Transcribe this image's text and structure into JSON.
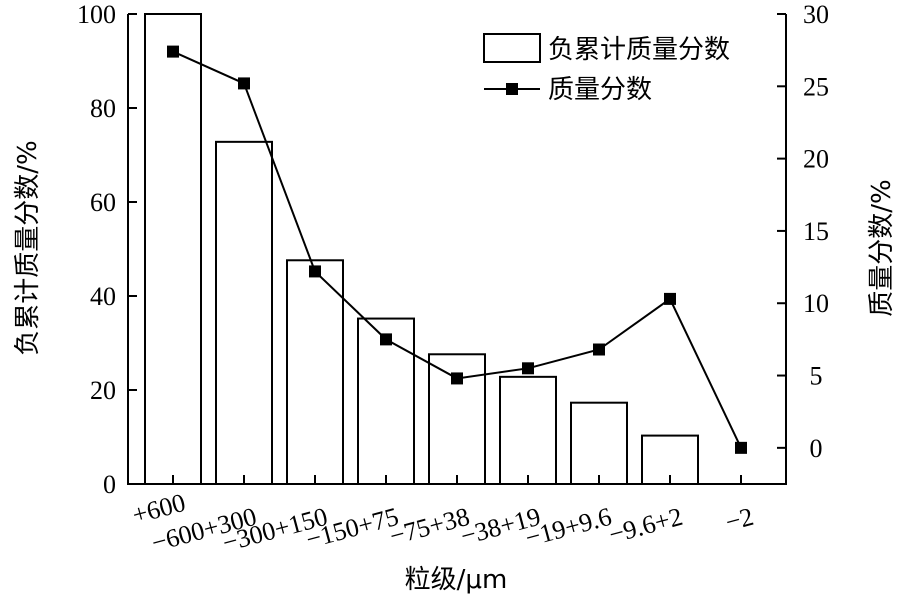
{
  "chart_data": {
    "type": "bar+line",
    "categories": [
      "+600",
      "−600+300",
      "−300+150",
      "−150+75",
      "−75+38",
      "−38+19",
      "−19+9.6",
      "−9.6+2",
      "−2"
    ],
    "xlabel": "粒级/μm",
    "ylabel_left": "负累计质量分数/%",
    "ylabel_right": "质量分数/%",
    "ylim_left": [
      0,
      100
    ],
    "ylim_right": [
      -2.5,
      30
    ],
    "yticks_left": [
      0,
      20,
      40,
      60,
      80,
      100
    ],
    "yticks_right": [
      0,
      5,
      10,
      15,
      20,
      25,
      30
    ],
    "legend_position": "top-right",
    "series": [
      {
        "name": "负累计质量分数",
        "kind": "bar",
        "axis": "left",
        "values": [
          100,
          72.8,
          47.6,
          35.2,
          27.6,
          22.8,
          17.3,
          10.3,
          null
        ]
      },
      {
        "name": "质量分数",
        "kind": "line",
        "axis": "right",
        "values": [
          27.4,
          25.2,
          12.2,
          7.5,
          4.8,
          5.5,
          6.8,
          10.3,
          0
        ]
      }
    ]
  }
}
